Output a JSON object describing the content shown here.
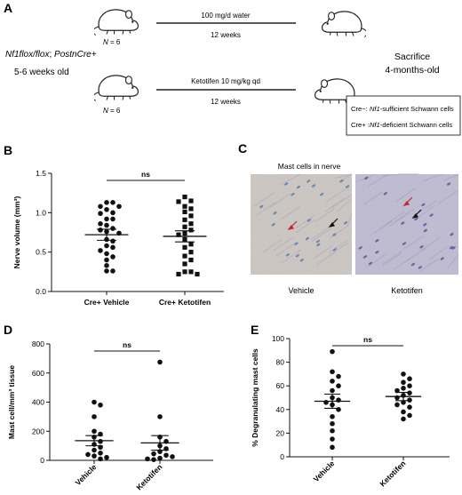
{
  "panels": {
    "A": {
      "letter": "A",
      "genotype_italic": "Nf1flox/flox",
      "genotype_sep": "; ",
      "genotype_rest": "PostnCre+",
      "age": "5-6 weeks old",
      "n_prefix": "N",
      "n_value": " = 6",
      "top_treatment": "100 mg/d water",
      "top_duration": "12 weeks",
      "bottom_treatment": "Ketotifen 10 mg/kg qd",
      "bottom_duration": "12 weeks",
      "sacrifice": "Sacrifice",
      "sacrifice_age": "4-months-old",
      "legend_1_prefix": "Cre−: ",
      "legend_1_gene": "Nf1",
      "legend_1_suffix": "-sufficient Schwann cells",
      "legend_2_prefix": "Cre+ :",
      "legend_2_gene": "Nf1",
      "legend_2_suffix": "-deficient Schwann cells"
    },
    "B": {
      "letter": "B"
    },
    "C": {
      "letter": "C",
      "title": "Mast cells in nerve",
      "left_label": "Vehicle",
      "right_label": "Ketotifen"
    },
    "D": {
      "letter": "D"
    },
    "E": {
      "letter": "E"
    }
  },
  "chart_data": [
    {
      "id": "B",
      "type": "scatter",
      "ylabel": "Nerve volume (mm³)",
      "ylim": [
        0,
        1.5
      ],
      "yticks": [
        "0.0",
        "0.5",
        "1.0",
        "1.5"
      ],
      "categories": [
        "Cre+ Vehicle",
        "Cre+ Ketotifen"
      ],
      "significance": "ns",
      "series": [
        {
          "marker": "circle",
          "values": [
            1.13,
            1.13,
            1.08,
            1.08,
            1.04,
            1.0,
            0.99,
            0.92,
            0.92,
            0.86,
            0.84,
            0.8,
            0.78,
            0.76,
            0.74,
            0.66,
            0.64,
            0.58,
            0.56,
            0.52,
            0.48,
            0.44,
            0.4,
            0.33,
            0.26,
            0.26
          ],
          "mean": 0.72,
          "sem_low": 0.65,
          "sem_high": 0.79
        },
        {
          "marker": "square",
          "values": [
            1.2,
            1.15,
            1.14,
            1.08,
            1.05,
            1.01,
            0.96,
            0.91,
            0.86,
            0.82,
            0.78,
            0.74,
            0.72,
            0.66,
            0.6,
            0.56,
            0.5,
            0.45,
            0.4,
            0.35,
            0.25,
            0.25,
            0.22,
            0.22
          ],
          "mean": 0.7,
          "sem_low": 0.63,
          "sem_high": 0.77
        }
      ]
    },
    {
      "id": "D",
      "type": "scatter",
      "ylabel": "Mast cell/mm³ tissue",
      "ylim": [
        0,
        800
      ],
      "yticks": [
        "0",
        "200",
        "400",
        "600",
        "800"
      ],
      "categories": [
        "Vehicle",
        "Ketotifen"
      ],
      "significance": "ns",
      "series": [
        {
          "marker": "circle",
          "values": [
            400,
            380,
            300,
            200,
            180,
            160,
            130,
            110,
            90,
            70,
            50,
            40,
            30,
            20,
            10
          ],
          "mean": 135,
          "sem_low": 100,
          "sem_high": 170
        },
        {
          "marker": "circle",
          "values": [
            675,
            300,
            160,
            130,
            100,
            80,
            60,
            45,
            35,
            25,
            15,
            10,
            5
          ],
          "mean": 120,
          "sem_low": 70,
          "sem_high": 170
        }
      ]
    },
    {
      "id": "E",
      "type": "scatter",
      "ylabel": "% Degranulating mast cells",
      "ylim": [
        0,
        100
      ],
      "yticks": [
        "0",
        "20",
        "40",
        "60",
        "80",
        "100"
      ],
      "categories": [
        "Vehicle",
        "Ketotifen"
      ],
      "significance": "ns",
      "series": [
        {
          "marker": "circle",
          "values": [
            89,
            72,
            68,
            64,
            60,
            56,
            50,
            48,
            46,
            44,
            40,
            34,
            28,
            22,
            15,
            8
          ],
          "mean": 47,
          "sem_low": 41,
          "sem_high": 53
        },
        {
          "marker": "circle",
          "values": [
            70,
            66,
            63,
            60,
            58,
            56,
            54,
            52,
            50,
            48,
            46,
            44,
            42,
            38,
            35,
            32
          ],
          "mean": 51,
          "sem_low": 47.5,
          "sem_high": 54.5
        }
      ]
    }
  ]
}
